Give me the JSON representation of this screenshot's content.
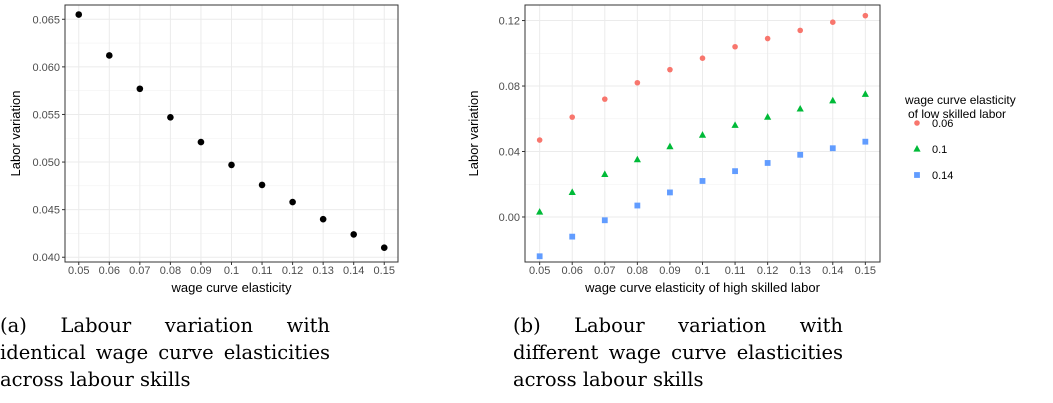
{
  "chart_data": [
    {
      "type": "scatter",
      "title": "",
      "xlabel": "wage curve elasticity",
      "ylabel": "Labor variation",
      "x_ticks": [
        "0.05",
        "0.06",
        "0.07",
        "0.08",
        "0.09",
        "0.1",
        "0.11",
        "0.12",
        "0.13",
        "0.14",
        "0.15"
      ],
      "y_ticks": [
        "0.040",
        "0.045",
        "0.050",
        "0.055",
        "0.060",
        "0.065"
      ],
      "ylim": [
        0.0395,
        0.0665
      ],
      "grid": true,
      "series": [
        {
          "color": "#000000",
          "marker": "circle",
          "x": [
            0.05,
            0.06,
            0.07,
            0.08,
            0.09,
            0.1,
            0.11,
            0.12,
            0.13,
            0.14,
            0.15
          ],
          "values": [
            0.0655,
            0.0612,
            0.0577,
            0.0547,
            0.0521,
            0.0497,
            0.0476,
            0.0458,
            0.044,
            0.0424,
            0.041
          ]
        }
      ],
      "caption_label": "(a)",
      "caption": "Labour variation with identical wage curve elasticities across labour skills"
    },
    {
      "type": "scatter",
      "title": "",
      "xlabel": "wage curve elasticity of high skilled labor",
      "ylabel": "Labor variation",
      "x_ticks": [
        "0.05",
        "0.06",
        "0.07",
        "0.08",
        "0.09",
        "0.1",
        "0.11",
        "0.12",
        "0.13",
        "0.14",
        "0.15"
      ],
      "y_ticks": [
        "0.00",
        "0.04",
        "0.08",
        "0.12"
      ],
      "y_tick_values": [
        0.0,
        0.04,
        0.08,
        0.12
      ],
      "ylim": [
        -0.0275,
        0.1295
      ],
      "grid": true,
      "legend_title": "wage curve elasticity\nof low skilled labor",
      "legend_position": "right",
      "series": [
        {
          "name": "0.06",
          "color": "#F8766D",
          "marker": "circle",
          "x": [
            0.05,
            0.06,
            0.07,
            0.08,
            0.09,
            0.1,
            0.11,
            0.12,
            0.13,
            0.14,
            0.15
          ],
          "values": [
            0.047,
            0.061,
            0.072,
            0.082,
            0.09,
            0.097,
            0.104,
            0.109,
            0.114,
            0.119,
            0.123
          ]
        },
        {
          "name": "0.1",
          "color": "#00BA38",
          "marker": "triangle",
          "x": [
            0.05,
            0.06,
            0.07,
            0.08,
            0.09,
            0.1,
            0.11,
            0.12,
            0.13,
            0.14,
            0.15
          ],
          "values": [
            0.003,
            0.015,
            0.026,
            0.035,
            0.043,
            0.05,
            0.056,
            0.061,
            0.066,
            0.071,
            0.075
          ]
        },
        {
          "name": "0.14",
          "color": "#619CFF",
          "marker": "square",
          "x": [
            0.05,
            0.06,
            0.07,
            0.08,
            0.09,
            0.1,
            0.11,
            0.12,
            0.13,
            0.14,
            0.15
          ],
          "values": [
            -0.024,
            -0.012,
            -0.002,
            0.007,
            0.015,
            0.022,
            0.028,
            0.033,
            0.038,
            0.042,
            0.046
          ]
        }
      ],
      "caption_label": "(b)",
      "caption": "Labour variation with different wage curve elasticities across labour skills"
    }
  ]
}
